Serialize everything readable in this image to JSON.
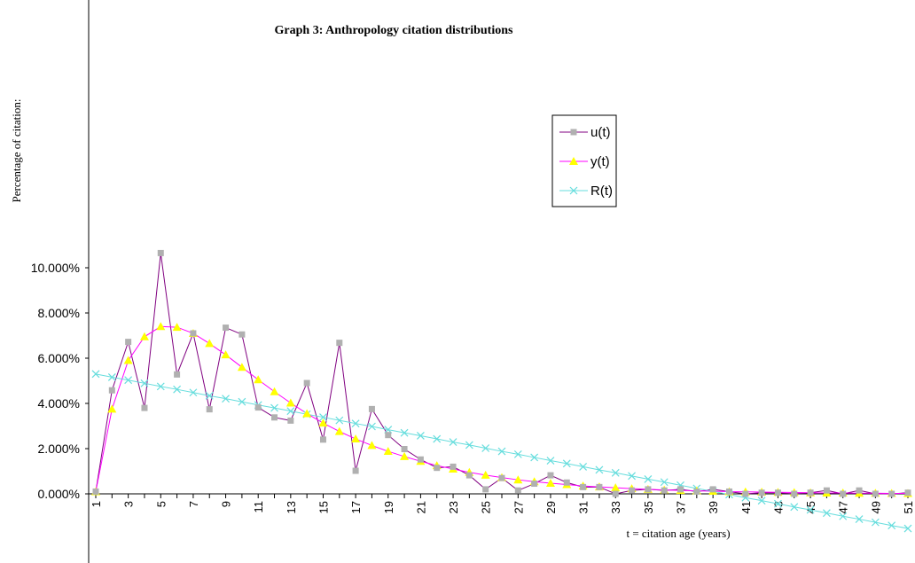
{
  "chart_data": {
    "type": "line",
    "title": "Graph 3: Anthropology citation distributions",
    "xlabel": "t = citation age (years)",
    "ylabel": "Percentage of citation:",
    "x": [
      1,
      2,
      3,
      4,
      5,
      6,
      7,
      8,
      9,
      10,
      11,
      12,
      13,
      14,
      15,
      16,
      17,
      18,
      19,
      20,
      21,
      22,
      23,
      24,
      25,
      26,
      27,
      28,
      29,
      30,
      31,
      32,
      33,
      34,
      35,
      36,
      37,
      38,
      39,
      40,
      41,
      42,
      43,
      44,
      45,
      46,
      47,
      48,
      49,
      50,
      51
    ],
    "x_tick_labels": [
      "1",
      "3",
      "5",
      "7",
      "9",
      "11",
      "13",
      "15",
      "17",
      "19",
      "21",
      "23",
      "25",
      "27",
      "29",
      "31",
      "33",
      "35",
      "37",
      "39",
      "41",
      "43",
      "45",
      "47",
      "49",
      "51"
    ],
    "ylim": [
      -0.0152,
      0.11
    ],
    "y_ticks": [
      0,
      0.02,
      0.04,
      0.06,
      0.08,
      0.1
    ],
    "y_tick_labels": [
      "0.000%",
      "2.000%",
      "4.000%",
      "6.000%",
      "8.000%",
      "10.000%"
    ],
    "legend_position": "right",
    "series": [
      {
        "name": "u(t)",
        "color": "#800080",
        "marker": "square",
        "marker_color": "#b0b0b0",
        "values": [
          0.001,
          0.0458,
          0.0672,
          0.038,
          0.1065,
          0.0528,
          0.071,
          0.0374,
          0.0735,
          0.0705,
          0.0382,
          0.0338,
          0.0324,
          0.049,
          0.024,
          0.0668,
          0.0102,
          0.0375,
          0.026,
          0.0198,
          0.0152,
          0.0115,
          0.012,
          0.0082,
          0.002,
          0.007,
          0.0015,
          0.0045,
          0.0082,
          0.005,
          0.003,
          0.003,
          0.0,
          0.0015,
          0.002,
          0.0015,
          0.002,
          0.001,
          0.002,
          0.001,
          0.0,
          0.0005,
          0.0005,
          0.0,
          0.0005,
          0.0015,
          0.0,
          0.0015,
          0.0,
          0.0,
          0.0005
        ]
      },
      {
        "name": "y(t)",
        "color": "#ff00ff",
        "marker": "triangle",
        "marker_color": "#ffff00",
        "values": [
          0.001,
          0.0375,
          0.059,
          0.0695,
          0.074,
          0.0737,
          0.071,
          0.0665,
          0.0615,
          0.056,
          0.0505,
          0.0452,
          0.0402,
          0.0355,
          0.0313,
          0.0276,
          0.0243,
          0.0214,
          0.0188,
          0.0165,
          0.0144,
          0.0125,
          0.011,
          0.0095,
          0.0083,
          0.0072,
          0.0062,
          0.0054,
          0.0047,
          0.0041,
          0.0035,
          0.0031,
          0.0027,
          0.0023,
          0.002,
          0.0017,
          0.0015,
          0.0013,
          0.0012,
          0.001,
          0.0009,
          0.0008,
          0.0007,
          0.0006,
          0.0005,
          0.0004,
          0.0004,
          0.0003,
          0.0003,
          0.0002,
          0.0002
        ]
      },
      {
        "name": "R(t)",
        "color": "#66dddd",
        "marker": "x",
        "marker_color": "#66dddd",
        "values": [
          0.053,
          0.0516,
          0.0503,
          0.0489,
          0.0475,
          0.0462,
          0.0448,
          0.0434,
          0.0421,
          0.0407,
          0.0393,
          0.038,
          0.0366,
          0.0352,
          0.0339,
          0.0325,
          0.0311,
          0.0298,
          0.0284,
          0.027,
          0.0257,
          0.0243,
          0.0229,
          0.0216,
          0.0202,
          0.0188,
          0.0175,
          0.0161,
          0.0147,
          0.0134,
          0.012,
          0.0106,
          0.0093,
          0.0079,
          0.0065,
          0.0052,
          0.0038,
          0.0024,
          0.0011,
          -0.0003,
          -0.0017,
          -0.003,
          -0.0044,
          -0.0058,
          -0.0071,
          -0.0085,
          -0.0099,
          -0.0112,
          -0.0126,
          -0.014,
          -0.0153
        ]
      }
    ]
  }
}
